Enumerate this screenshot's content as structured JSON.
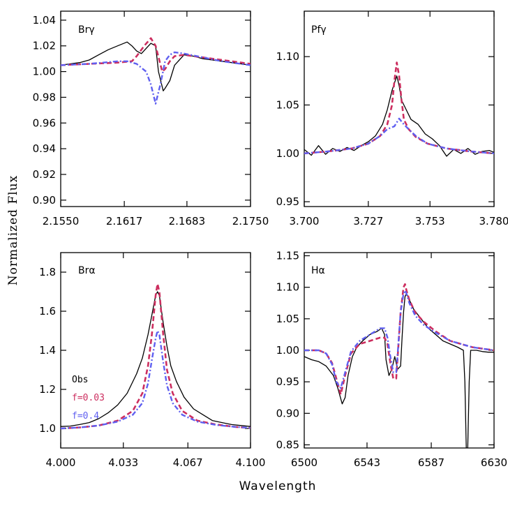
{
  "figure": {
    "ylabel": "Normalized Flux",
    "xlabel": "Wavelength"
  },
  "legend": {
    "entries": [
      {
        "label": "Obs",
        "color": "#000000"
      },
      {
        "label": "f=0.03",
        "color": "#cc2e5f"
      },
      {
        "label": "f=0.4",
        "color": "#5f5ff0"
      }
    ]
  },
  "chart_data": [
    {
      "type": "line",
      "label": "Brγ",
      "xlim": [
        2.155,
        2.175
      ],
      "ylim": [
        0.895,
        1.047
      ],
      "xticks": [
        2.155,
        2.1617,
        2.1683,
        2.175
      ],
      "xtick_labels": [
        "2.1550",
        "2.1617",
        "2.1683",
        "2.1750"
      ],
      "yticks": [
        0.9,
        0.92,
        0.94,
        0.96,
        0.98,
        1.0,
        1.02,
        1.04
      ],
      "ytick_labels": [
        "0.90",
        "0.92",
        "0.94",
        "0.96",
        "0.98",
        "1.00",
        "1.02",
        "1.04"
      ],
      "series": [
        {
          "name": "Obs",
          "color": "#000000",
          "style": "solid",
          "x": [
            2.155,
            2.156,
            2.157,
            2.158,
            2.159,
            2.16,
            2.161,
            2.162,
            2.1625,
            2.163,
            2.1635,
            2.164,
            2.1645,
            2.165,
            2.1653,
            2.1658,
            2.166,
            2.1665,
            2.167,
            2.168,
            2.169,
            2.17,
            2.171,
            2.172,
            2.173,
            2.174,
            2.175
          ],
          "y": [
            1.005,
            1.006,
            1.007,
            1.009,
            1.013,
            1.017,
            1.02,
            1.023,
            1.02,
            1.016,
            1.014,
            1.018,
            1.022,
            1.02,
            1.0,
            0.985,
            0.987,
            0.993,
            1.005,
            1.013,
            1.012,
            1.01,
            1.009,
            1.008,
            1.007,
            1.006,
            1.005
          ]
        },
        {
          "name": "f=0.03",
          "color": "#cc2e5f",
          "style": "dash",
          "x": [
            2.155,
            2.158,
            2.161,
            2.1625,
            2.163,
            2.1638,
            2.1645,
            2.165,
            2.1657,
            2.166,
            2.1665,
            2.167,
            2.168,
            2.17,
            2.172,
            2.175
          ],
          "y": [
            1.005,
            1.006,
            1.007,
            1.008,
            1.012,
            1.02,
            1.026,
            1.02,
            1.0,
            1.002,
            1.008,
            1.012,
            1.013,
            1.011,
            1.009,
            1.006
          ]
        },
        {
          "name": "f=0.4",
          "color": "#5f5ff0",
          "style": "dashdot",
          "x": [
            2.155,
            2.158,
            2.161,
            2.162,
            2.163,
            2.164,
            2.1645,
            2.165,
            2.1655,
            2.166,
            2.1665,
            2.167,
            2.168,
            2.17,
            2.172,
            2.175
          ],
          "y": [
            1.005,
            1.006,
            1.008,
            1.008,
            1.006,
            1.0,
            0.99,
            0.975,
            0.99,
            1.008,
            1.013,
            1.015,
            1.014,
            1.011,
            1.008,
            1.005
          ]
        }
      ]
    },
    {
      "type": "line",
      "label": "Pfγ",
      "xlim": [
        3.7,
        3.78
      ],
      "ylim": [
        0.945,
        1.147
      ],
      "xticks": [
        3.7,
        3.727,
        3.753,
        3.78
      ],
      "xtick_labels": [
        "3.700",
        "3.727",
        "3.753",
        "3.780"
      ],
      "yticks": [
        0.95,
        1.0,
        1.05,
        1.1
      ],
      "ytick_labels": [
        "0.95",
        "1.00",
        "1.05",
        "1.10"
      ],
      "series": [
        {
          "name": "Obs",
          "color": "#000000",
          "style": "solid",
          "x": [
            3.7,
            3.703,
            3.706,
            3.709,
            3.712,
            3.715,
            3.718,
            3.721,
            3.724,
            3.727,
            3.73,
            3.733,
            3.735,
            3.737,
            3.739,
            3.74,
            3.741,
            3.743,
            3.745,
            3.748,
            3.751,
            3.754,
            3.757,
            3.76,
            3.763,
            3.766,
            3.769,
            3.772,
            3.775,
            3.778,
            3.78
          ],
          "y": [
            1.004,
            0.998,
            1.008,
            0.999,
            1.005,
            1.002,
            1.006,
            1.003,
            1.008,
            1.012,
            1.018,
            1.03,
            1.045,
            1.065,
            1.08,
            1.07,
            1.055,
            1.045,
            1.035,
            1.03,
            1.02,
            1.015,
            1.008,
            0.997,
            1.004,
            1.0,
            1.005,
            0.999,
            1.002,
            1.003,
            1.001
          ]
        },
        {
          "name": "f=0.03",
          "color": "#cc2e5f",
          "style": "dash",
          "x": [
            3.7,
            3.71,
            3.72,
            3.727,
            3.732,
            3.735,
            3.737,
            3.738,
            3.739,
            3.74,
            3.741,
            3.742,
            3.744,
            3.747,
            3.752,
            3.76,
            3.77,
            3.78
          ],
          "y": [
            1.0,
            1.002,
            1.005,
            1.01,
            1.018,
            1.03,
            1.05,
            1.075,
            1.094,
            1.08,
            1.055,
            1.035,
            1.025,
            1.017,
            1.01,
            1.005,
            1.002,
            1.0
          ]
        },
        {
          "name": "f=0.4",
          "color": "#5f5ff0",
          "style": "dashdot",
          "x": [
            3.7,
            3.71,
            3.72,
            3.727,
            3.732,
            3.735,
            3.738,
            3.74,
            3.742,
            3.744,
            3.747,
            3.752,
            3.76,
            3.77,
            3.78
          ],
          "y": [
            1.0,
            1.002,
            1.005,
            1.01,
            1.018,
            1.025,
            1.028,
            1.036,
            1.03,
            1.025,
            1.018,
            1.01,
            1.005,
            1.002,
            1.0
          ]
        }
      ]
    },
    {
      "type": "line",
      "label": "Brα",
      "xlim": [
        4.0,
        4.1
      ],
      "ylim": [
        0.9,
        1.9
      ],
      "xticks": [
        4.0,
        4.033,
        4.067,
        4.1
      ],
      "xtick_labels": [
        "4.000",
        "4.033",
        "4.067",
        "4.100"
      ],
      "yticks": [
        1.0,
        1.2,
        1.4,
        1.6,
        1.8
      ],
      "ytick_labels": [
        "1.0",
        "1.2",
        "1.4",
        "1.6",
        "1.8"
      ],
      "series": [
        {
          "name": "Obs",
          "color": "#000000",
          "style": "solid",
          "x": [
            4.0,
            4.005,
            4.01,
            4.015,
            4.02,
            4.025,
            4.03,
            4.035,
            4.04,
            4.043,
            4.046,
            4.048,
            4.05,
            4.051,
            4.052,
            4.054,
            4.056,
            4.058,
            4.061,
            4.065,
            4.07,
            4.075,
            4.08,
            4.085,
            4.09,
            4.095,
            4.1
          ],
          "y": [
            1.01,
            1.012,
            1.02,
            1.03,
            1.05,
            1.08,
            1.12,
            1.18,
            1.28,
            1.36,
            1.48,
            1.58,
            1.68,
            1.7,
            1.68,
            1.54,
            1.42,
            1.32,
            1.24,
            1.16,
            1.1,
            1.07,
            1.04,
            1.03,
            1.02,
            1.015,
            1.01
          ]
        },
        {
          "name": "f=0.03",
          "color": "#cc2e5f",
          "style": "dash",
          "x": [
            4.0,
            4.01,
            4.02,
            4.03,
            4.038,
            4.043,
            4.046,
            4.048,
            4.05,
            4.051,
            4.052,
            4.054,
            4.056,
            4.059,
            4.064,
            4.072,
            4.082,
            4.092,
            4.1
          ],
          "y": [
            1.0,
            1.005,
            1.015,
            1.04,
            1.09,
            1.18,
            1.32,
            1.48,
            1.68,
            1.74,
            1.7,
            1.48,
            1.3,
            1.18,
            1.09,
            1.04,
            1.02,
            1.008,
            1.003
          ]
        },
        {
          "name": "f=0.4",
          "color": "#5f5ff0",
          "style": "dashdot",
          "x": [
            4.0,
            4.01,
            4.02,
            4.03,
            4.038,
            4.043,
            4.046,
            4.048,
            4.05,
            4.051,
            4.052,
            4.054,
            4.056,
            4.059,
            4.064,
            4.072,
            4.082,
            4.092,
            4.1
          ],
          "y": [
            1.0,
            1.005,
            1.015,
            1.035,
            1.07,
            1.13,
            1.23,
            1.35,
            1.46,
            1.5,
            1.48,
            1.34,
            1.22,
            1.13,
            1.07,
            1.035,
            1.018,
            1.008,
            1.003
          ]
        }
      ]
    },
    {
      "type": "line",
      "label": "Hα",
      "xlim": [
        6500,
        6630
      ],
      "ylim": [
        0.845,
        1.155
      ],
      "xticks": [
        6500,
        6543,
        6587,
        6630
      ],
      "xtick_labels": [
        "6500",
        "6543",
        "6587",
        "6630"
      ],
      "yticks": [
        0.85,
        0.9,
        0.95,
        1.0,
        1.05,
        1.1,
        1.15
      ],
      "ytick_labels": [
        "0.85",
        "0.90",
        "0.95",
        "1.00",
        "1.05",
        "1.10",
        "1.15"
      ],
      "series": [
        {
          "name": "Obs",
          "color": "#000000",
          "style": "solid",
          "x": [
            6500,
            6505,
            6510,
            6515,
            6520,
            6523,
            6526,
            6528,
            6530,
            6533,
            6536,
            6540,
            6545,
            6550,
            6553,
            6555,
            6556,
            6558,
            6560,
            6562,
            6564,
            6566,
            6567,
            6568,
            6569,
            6570,
            6572,
            6575,
            6580,
            6585,
            6590,
            6595,
            6600,
            6605,
            6609,
            6610,
            6611,
            6612,
            6613,
            6614,
            6618,
            6622,
            6626,
            6630
          ],
          "y": [
            0.99,
            0.985,
            0.982,
            0.975,
            0.96,
            0.94,
            0.915,
            0.925,
            0.96,
            0.99,
            1.005,
            1.015,
            1.025,
            1.03,
            1.035,
            1.025,
            0.985,
            0.96,
            0.97,
            0.99,
            0.97,
            0.975,
            1.02,
            1.06,
            1.085,
            1.09,
            1.08,
            1.065,
            1.05,
            1.035,
            1.025,
            1.015,
            1.01,
            1.005,
            1.0,
            0.95,
            0.845,
            0.845,
            0.95,
            1.0,
            1.0,
            0.998,
            0.997,
            0.997
          ]
        },
        {
          "name": "f=0.03",
          "color": "#cc2e5f",
          "style": "dash",
          "x": [
            6500,
            6510,
            6515,
            6519,
            6522,
            6525,
            6528,
            6532,
            6538,
            6545,
            6552,
            6555,
            6557,
            6559,
            6561,
            6563,
            6564,
            6566,
            6568,
            6569,
            6570,
            6572,
            6576,
            6582,
            6590,
            6600,
            6615,
            6630
          ],
          "y": [
            1.0,
            1.0,
            0.995,
            0.98,
            0.955,
            0.93,
            0.96,
            0.995,
            1.01,
            1.015,
            1.02,
            1.02,
            1.01,
            0.98,
            0.955,
            0.955,
            0.99,
            1.06,
            1.1,
            1.105,
            1.095,
            1.08,
            1.06,
            1.045,
            1.03,
            1.015,
            1.005,
            1.0
          ]
        },
        {
          "name": "f=0.4",
          "color": "#5f5ff0",
          "style": "dashdot",
          "x": [
            6500,
            6510,
            6515,
            6519,
            6522,
            6525,
            6528,
            6532,
            6538,
            6545,
            6552,
            6555,
            6557,
            6559,
            6561,
            6563,
            6564,
            6566,
            6568,
            6569,
            6570,
            6572,
            6576,
            6582,
            6590,
            6600,
            6615,
            6630
          ],
          "y": [
            1.0,
            1.0,
            0.995,
            0.978,
            0.95,
            0.94,
            0.965,
            0.998,
            1.015,
            1.025,
            1.035,
            1.035,
            1.02,
            0.99,
            0.965,
            0.965,
            0.995,
            1.06,
            1.09,
            1.095,
            1.09,
            1.075,
            1.055,
            1.04,
            1.028,
            1.015,
            1.005,
            1.0
          ]
        }
      ]
    }
  ]
}
